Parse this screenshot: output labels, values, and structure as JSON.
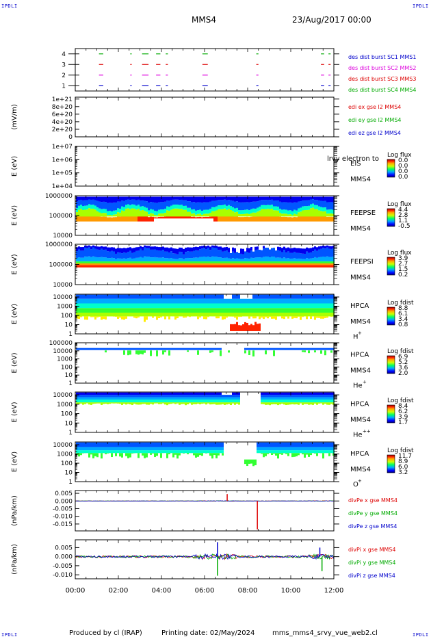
{
  "header": {
    "spacecraft": "MMS4",
    "date": "23/Aug/2017 00:00",
    "corner_tl": "IPDLI",
    "corner_tr": "IPDLI",
    "corner_bl": "IPDLI",
    "corner_br": "IPDLI"
  },
  "footer": {
    "produced_by": "Produced by cl (IRAP)",
    "printing_date": "Printing date: 02/May/2024",
    "script_name": "mms_mms4_srvy_vue_web2.cl"
  },
  "chart_data": {
    "type": "stacked-panels",
    "x_axis": {
      "ticks": [
        "00:00",
        "02:00",
        "04:00",
        "06:00",
        "08:00",
        "10:00",
        "12:00"
      ],
      "range": [
        "00:00",
        "12:00"
      ]
    },
    "panels": [
      {
        "id": "burst",
        "type": "timeline",
        "ytick_labels": [
          "1",
          "2",
          "3",
          "4"
        ],
        "ylim": [
          0.5,
          4.5
        ],
        "series": [
          {
            "name": "des dist burst SC1 MMS1",
            "color": "#00aa00",
            "level": 4
          },
          {
            "name": "des dist burst SC2 MMS2",
            "color": "#dd00dd",
            "level": 2
          },
          {
            "name": "des dist burst SC3 MMS3",
            "color": "#dd0000",
            "level": 3
          },
          {
            "name": "des dist burst SC4 MMS4",
            "color": "#0000cc",
            "level": 1
          }
        ],
        "legend_colors": [
          "#0000cc",
          "#dd00dd",
          "#dd0000",
          "#00aa00"
        ],
        "intervals": [
          [
            1.1,
            1.3
          ],
          [
            2.55,
            2.62
          ],
          [
            3.1,
            3.4
          ],
          [
            3.75,
            3.95
          ],
          [
            4.2,
            4.3
          ],
          [
            5.9,
            6.15
          ],
          [
            8.4,
            8.5
          ],
          [
            11.4,
            11.55
          ],
          [
            11.75,
            11.85
          ]
        ]
      },
      {
        "id": "edi",
        "type": "line",
        "ylabel": "(mV/m)",
        "ytick_labels": [
          "1e+21",
          "8e+20",
          "6e+20",
          "4e+20",
          "2e+20",
          "0"
        ],
        "yticks": [
          1e+21,
          8e+20,
          6e+20,
          4e+20,
          2e+20,
          0
        ],
        "ylim": [
          0,
          1.05e+21
        ],
        "series": [
          {
            "name": "edi ex gse l2 MMS4",
            "color": "#dd0000"
          },
          {
            "name": "edi ey gse l2 MMS4",
            "color": "#00aa00"
          },
          {
            "name": "edi ez gse l2 MMS4",
            "color": "#0000cc"
          }
        ]
      },
      {
        "id": "eis",
        "type": "spectrogram",
        "ylabel": "E (eV)",
        "ytick_labels": [
          "1e+07",
          "1e+06",
          "1e+05",
          "1e+04"
        ],
        "log_ymin": 4,
        "log_ymax": 7,
        "label_lines": [
          "EIS",
          "MMS4"
        ],
        "overlay_text": "lrvy electron to",
        "colorbar_title": "Log flux",
        "colorbar_labels": [
          "0.0",
          "0.0",
          "0.0",
          "0.0"
        ],
        "empty": true
      },
      {
        "id": "feeps_e",
        "type": "spectrogram",
        "ylabel": "E (eV)",
        "ytick_labels": [
          "1000000",
          "100000",
          "10000"
        ],
        "log_ymin": 4,
        "log_ymax": 6,
        "label_lines": [
          "FEEPSE",
          "MMS4"
        ],
        "colorbar_title": "Log flux",
        "colorbar_labels": [
          "4.4",
          "2.8",
          "1.1",
          "-0.5"
        ],
        "pattern": "feepse"
      },
      {
        "id": "feeps_i",
        "type": "spectrogram",
        "ylabel": "E (eV)",
        "ytick_labels": [
          "1000000",
          "100000",
          "10000"
        ],
        "log_ymin": 4,
        "log_ymax": 6,
        "label_lines": [
          "FEEPSI",
          "MMS4"
        ],
        "colorbar_title": "Log flux",
        "colorbar_labels": [
          "3.9",
          "2.7",
          "1.5",
          "0.2"
        ],
        "pattern": "feepsi"
      },
      {
        "id": "hpca_h",
        "type": "spectrogram",
        "ylabel": "E (eV)",
        "ytick_labels": [
          "10000",
          "1000",
          "100",
          "10",
          "1"
        ],
        "log_ymin": 0,
        "log_ymax": 4.3,
        "label_lines": [
          "HPCA",
          "MMS4"
        ],
        "species": "H",
        "species_sup": "+",
        "colorbar_title": "Log fdist",
        "colorbar_labels": [
          "8.8",
          "6.1",
          "3.4",
          "0.8"
        ],
        "pattern": "h"
      },
      {
        "id": "hpca_he1",
        "type": "spectrogram",
        "ylabel": "E (eV)",
        "ytick_labels": [
          "100000",
          "10000",
          "1000",
          "100",
          "10",
          "1"
        ],
        "log_ymin": 0,
        "log_ymax": 5,
        "label_lines": [
          "HPCA",
          "MMS4"
        ],
        "species": "He",
        "species_sup": "+",
        "colorbar_title": "Log fdist",
        "colorbar_labels": [
          "6.9",
          "5.2",
          "3.6",
          "2.0"
        ],
        "pattern": "he1"
      },
      {
        "id": "hpca_he2",
        "type": "spectrogram",
        "ylabel": "E (eV)",
        "ytick_labels": [
          "10000",
          "1000",
          "100",
          "10",
          "1"
        ],
        "log_ymin": 0,
        "log_ymax": 4.3,
        "label_lines": [
          "HPCA",
          "MMS4"
        ],
        "species": "He",
        "species_sup": "++",
        "colorbar_title": "Log fdist",
        "colorbar_labels": [
          "8.4",
          "6.2",
          "3.9",
          "1.7"
        ],
        "pattern": "he2"
      },
      {
        "id": "hpca_o",
        "type": "spectrogram",
        "ylabel": "E (eV)",
        "ytick_labels": [
          "10000",
          "1000",
          "100",
          "10",
          "1"
        ],
        "log_ymin": 0,
        "log_ymax": 4.3,
        "label_lines": [
          "HPCA",
          "MMS4"
        ],
        "species": "O",
        "species_sup": "+",
        "colorbar_title": "Log fdist",
        "colorbar_labels": [
          "11.7",
          "8.9",
          "6.0",
          "3.2"
        ],
        "pattern": "o"
      },
      {
        "id": "divpe",
        "type": "line",
        "ylabel": "(nPa/km)",
        "ytick_labels": [
          "0.005",
          "0.000",
          "-0.005",
          "-0.010",
          "-0.015"
        ],
        "yticks": [
          0.005,
          0.0,
          -0.005,
          -0.01,
          -0.015
        ],
        "ylim": [
          -0.0195,
          0.0068
        ],
        "series": [
          {
            "name": "divPe x gse MMS4",
            "color": "#dd0000"
          },
          {
            "name": "divPe y gse MMS4",
            "color": "#00aa00"
          },
          {
            "name": "divPe z gse MMS4",
            "color": "#0000cc"
          }
        ],
        "spikes": [
          {
            "series": 0,
            "t": 8.45,
            "value": -0.0185
          },
          {
            "series": 0,
            "t": 7.05,
            "value": 0.0045
          }
        ]
      },
      {
        "id": "divpi",
        "type": "line",
        "ylabel": "(nPa/km)",
        "ytick_labels": [
          "0.005",
          "0.000",
          "-0.005",
          "-0.010"
        ],
        "yticks": [
          0.005,
          0.0,
          -0.005,
          -0.01
        ],
        "ylim": [
          -0.0122,
          0.0093
        ],
        "series": [
          {
            "name": "divPi x gse MMS4",
            "color": "#dd0000"
          },
          {
            "name": "divPi y gse MMS4",
            "color": "#00aa00"
          },
          {
            "name": "divPi z gse MMS4",
            "color": "#0000cc"
          }
        ],
        "spikes": [
          {
            "series": 1,
            "t": 6.6,
            "value": -0.0105
          },
          {
            "series": 2,
            "t": 6.6,
            "value": 0.008
          },
          {
            "series": 1,
            "t": 11.45,
            "value": -0.008
          },
          {
            "series": 2,
            "t": 11.35,
            "value": 0.005
          }
        ]
      }
    ]
  }
}
